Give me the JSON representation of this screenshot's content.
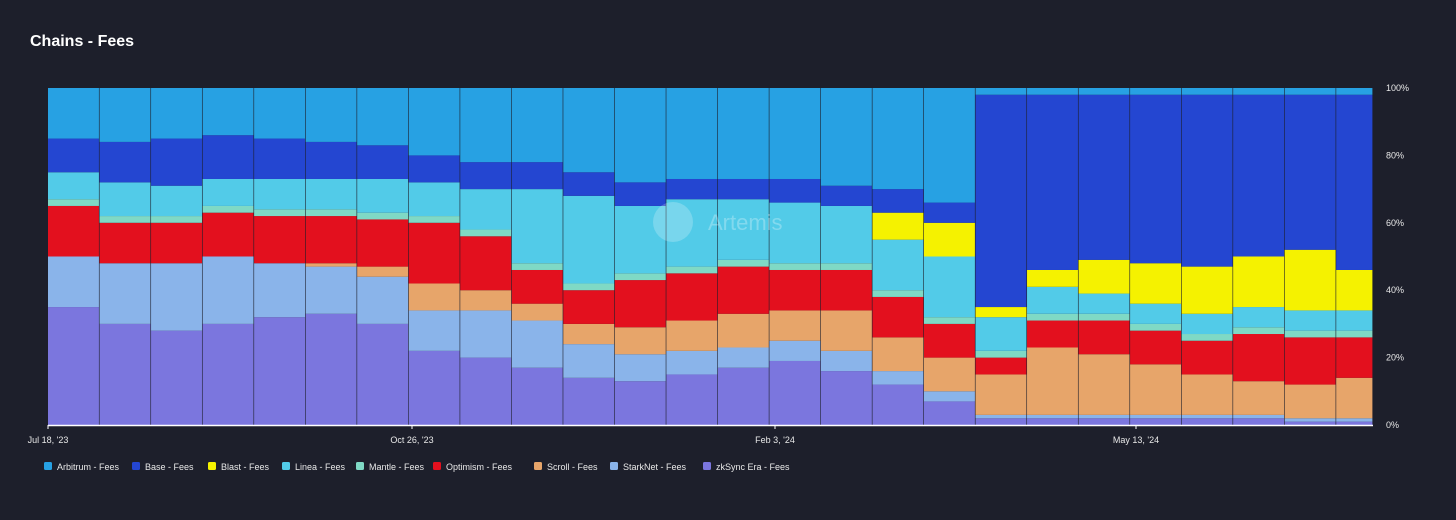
{
  "page": {
    "title": "Chains - Fees"
  },
  "watermark": "Artemis",
  "chart_data": {
    "type": "bar",
    "stacked": true,
    "normalized": true,
    "title": "Chains - Fees",
    "x_range": [
      "2023-07-18",
      "2024-07-12"
    ],
    "x_ticks": [
      "Jul 18, '23",
      "Oct 26, '23",
      "Feb 3, '24",
      "May 13, '24"
    ],
    "y_ticks": [
      "0%",
      "20%",
      "40%",
      "60%",
      "80%",
      "100%"
    ],
    "ylim": [
      0,
      100
    ],
    "grid": false,
    "legend_position": "bottom-left",
    "colors": {
      "zkSync Era - Fees": "#7b76de",
      "StarkNet - Fees": "#8ab4ea",
      "Scroll - Fees": "#e7a56a",
      "Optimism - Fees": "#e3101e",
      "Mantle - Fees": "#7fd9c5",
      "Linea - Fees": "#52cbe8",
      "Blast - Fees": "#f5f200",
      "Base - Fees": "#2446d1",
      "Arbitrum - Fees": "#27a1e3"
    },
    "legend": [
      "Arbitrum - Fees",
      "Base - Fees",
      "Blast - Fees",
      "Linea - Fees",
      "Mantle - Fees",
      "Optimism - Fees",
      "Scroll - Fees",
      "StarkNet - Fees",
      "zkSync Era - Fees"
    ],
    "stack_order": [
      "zkSync Era - Fees",
      "StarkNet - Fees",
      "Scroll - Fees",
      "Optimism - Fees",
      "Mantle - Fees",
      "Linea - Fees",
      "Blast - Fees",
      "Base - Fees",
      "Arbitrum - Fees"
    ],
    "x": [
      "2023-07-18",
      "2023-08-01",
      "2023-08-15",
      "2023-08-29",
      "2023-09-12",
      "2023-09-26",
      "2023-10-10",
      "2023-10-24",
      "2023-11-07",
      "2023-11-21",
      "2023-12-05",
      "2023-12-19",
      "2024-01-02",
      "2024-01-16",
      "2024-01-30",
      "2024-02-13",
      "2024-02-27",
      "2024-03-12",
      "2024-03-26",
      "2024-04-09",
      "2024-04-23",
      "2024-05-07",
      "2024-05-21",
      "2024-06-04",
      "2024-06-18",
      "2024-07-02"
    ],
    "series": [
      {
        "name": "zkSync Era - Fees",
        "values": [
          35,
          30,
          28,
          30,
          32,
          33,
          30,
          22,
          20,
          17,
          14,
          13,
          15,
          17,
          19,
          16,
          12,
          7,
          2,
          2,
          2,
          2,
          2,
          2,
          1,
          1
        ]
      },
      {
        "name": "StarkNet - Fees",
        "values": [
          15,
          18,
          20,
          20,
          16,
          14,
          14,
          12,
          14,
          14,
          10,
          8,
          7,
          6,
          6,
          6,
          4,
          3,
          1,
          1,
          1,
          1,
          1,
          1,
          1,
          1
        ]
      },
      {
        "name": "Scroll - Fees",
        "values": [
          0,
          0,
          0,
          0,
          0,
          1,
          3,
          8,
          6,
          5,
          6,
          8,
          9,
          10,
          9,
          12,
          10,
          10,
          12,
          20,
          18,
          15,
          12,
          10,
          10,
          12
        ]
      },
      {
        "name": "Optimism - Fees",
        "values": [
          15,
          12,
          12,
          13,
          14,
          14,
          14,
          18,
          16,
          10,
          10,
          14,
          14,
          14,
          12,
          12,
          12,
          10,
          5,
          8,
          10,
          10,
          10,
          14,
          14,
          12
        ]
      },
      {
        "name": "Mantle - Fees",
        "values": [
          2,
          2,
          2,
          2,
          2,
          2,
          2,
          2,
          2,
          2,
          2,
          2,
          2,
          2,
          2,
          2,
          2,
          2,
          2,
          2,
          2,
          2,
          2,
          2,
          2,
          2
        ]
      },
      {
        "name": "Linea - Fees",
        "values": [
          8,
          10,
          9,
          8,
          9,
          9,
          10,
          10,
          12,
          22,
          26,
          20,
          20,
          18,
          18,
          17,
          15,
          18,
          10,
          8,
          6,
          6,
          6,
          6,
          6,
          6
        ]
      },
      {
        "name": "Blast - Fees",
        "values": [
          0,
          0,
          0,
          0,
          0,
          0,
          0,
          0,
          0,
          0,
          0,
          0,
          0,
          0,
          0,
          0,
          8,
          10,
          3,
          5,
          10,
          12,
          14,
          15,
          18,
          12
        ]
      },
      {
        "name": "Base - Fees",
        "values": [
          10,
          12,
          14,
          13,
          12,
          11,
          10,
          8,
          8,
          8,
          7,
          7,
          6,
          6,
          7,
          6,
          7,
          6,
          63,
          52,
          49,
          50,
          51,
          48,
          46,
          52
        ]
      },
      {
        "name": "Arbitrum - Fees",
        "values": [
          15,
          16,
          15,
          14,
          15,
          16,
          17,
          20,
          22,
          22,
          25,
          28,
          27,
          27,
          27,
          29,
          30,
          34,
          2,
          2,
          2,
          2,
          2,
          2,
          2,
          2
        ]
      }
    ]
  }
}
